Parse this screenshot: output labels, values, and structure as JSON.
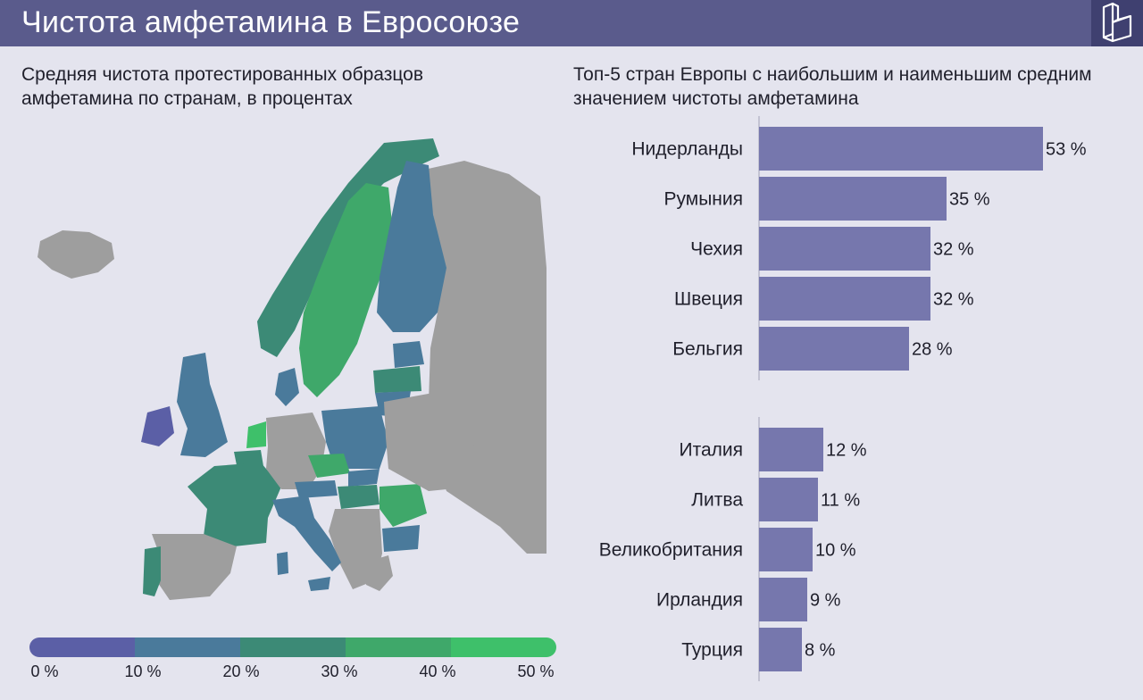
{
  "header": {
    "title": "Чистота амфетамина в Евросоюзе"
  },
  "left_panel": {
    "subtitle": "Средняя чистота протестированных образцов амфетамина по странам, в процентах",
    "legend": {
      "colors": [
        "#5b5fa6",
        "#4a7a9b",
        "#3c8a76",
        "#3fa86a",
        "#3ec06a"
      ],
      "ticks": [
        "0 %",
        "10 %",
        "20 %",
        "30 %",
        "40 %",
        "50 %"
      ]
    }
  },
  "right_panel": {
    "subtitle": "Топ-5 стран Европы с наибольшим и наименьшим средним значением чистоты амфетамина"
  },
  "colors": {
    "header_bg": "#5a5b8c",
    "bar": "#7677ad",
    "no_data": "#9e9e9e",
    "background": "#e4e4ee"
  },
  "chart_data": [
    {
      "type": "bar",
      "orientation": "horizontal",
      "title": "Топ-5 стран Европы с наибольшим и наименьшим средним значением чистоты амфетамина",
      "groups": [
        {
          "categories": [
            "Нидерланды",
            "Румыния",
            "Чехия",
            "Швеция",
            "Бельгия"
          ],
          "values": [
            53,
            35,
            32,
            32,
            28
          ],
          "labels": [
            "53 %",
            "35 %",
            "32 %",
            "32 %",
            "28 %"
          ]
        },
        {
          "categories": [
            "Италия",
            "Литва",
            "Великобритания",
            "Ирландия",
            "Турция"
          ],
          "values": [
            12,
            11,
            10,
            9,
            8
          ],
          "labels": [
            "12 %",
            "11 %",
            "10 %",
            "9 %",
            "8 %"
          ]
        }
      ],
      "unit": "%",
      "xlim": [
        0,
        55
      ]
    },
    {
      "type": "choropleth",
      "title": "Средняя чистота протестированных образцов амфетамина по странам, в процентах",
      "color_scale": {
        "min": 0,
        "max": 50,
        "unit": "%"
      },
      "regions": [
        {
          "country": "Нидерланды",
          "value": 53
        },
        {
          "country": "Румыния",
          "value": 35
        },
        {
          "country": "Чехия",
          "value": 32
        },
        {
          "country": "Швеция",
          "value": 32
        },
        {
          "country": "Бельгия",
          "value": 28
        },
        {
          "country": "Италия",
          "value": 12
        },
        {
          "country": "Литва",
          "value": 11
        },
        {
          "country": "Великобритания",
          "value": 10
        },
        {
          "country": "Ирландия",
          "value": 9
        },
        {
          "country": "Турция",
          "value": 8
        }
      ]
    }
  ]
}
